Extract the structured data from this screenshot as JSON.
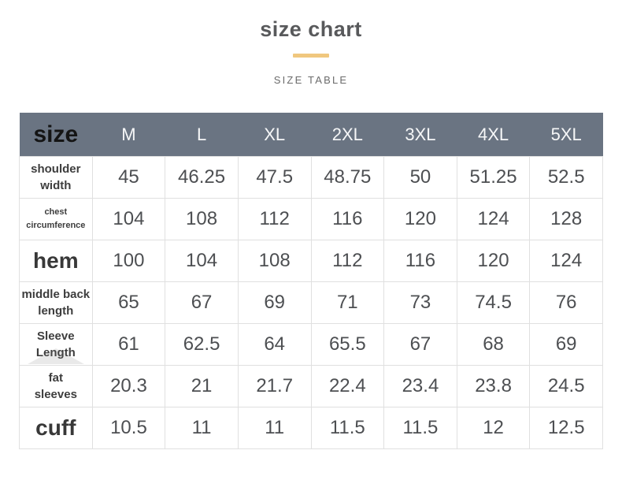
{
  "page": {
    "title": "size chart",
    "subtitle": "SIZE TABLE",
    "accent_color": "#f0c77e"
  },
  "table": {
    "corner_label": "size",
    "header_bg": "#6a7482",
    "columns": [
      "M",
      "L",
      "XL",
      "2XL",
      "3XL",
      "4XL",
      "5XL"
    ],
    "rows": [
      {
        "label": "shoulder\nwidth",
        "label_size": "sm",
        "values": [
          "45",
          "46.25",
          "47.5",
          "48.75",
          "50",
          "51.25",
          "52.5"
        ]
      },
      {
        "label": "chest\ncircumference",
        "label_size": "xs",
        "values": [
          "104",
          "108",
          "112",
          "116",
          "120",
          "124",
          "128"
        ]
      },
      {
        "label": "hem",
        "label_size": "lg",
        "values": [
          "100",
          "104",
          "108",
          "112",
          "116",
          "120",
          "124"
        ]
      },
      {
        "label": "middle back\nlength",
        "label_size": "sm",
        "values": [
          "65",
          "67",
          "69",
          "71",
          "73",
          "74.5",
          "76"
        ]
      },
      {
        "label": "Sleeve\nLength",
        "label_size": "sm",
        "watermark": true,
        "values": [
          "61",
          "62.5",
          "64",
          "65.5",
          "67",
          "68",
          "69"
        ]
      },
      {
        "label": "fat\nsleeves",
        "label_size": "sm",
        "values": [
          "20.3",
          "21",
          "21.7",
          "22.4",
          "23.4",
          "23.8",
          "24.5"
        ]
      },
      {
        "label": "cuff",
        "label_size": "lg",
        "values": [
          "10.5",
          "11",
          "11",
          "11.5",
          "11.5",
          "12",
          "12.5"
        ]
      }
    ]
  },
  "chart_data": {
    "type": "table",
    "title": "size chart",
    "columns": [
      "size",
      "M",
      "L",
      "XL",
      "2XL",
      "3XL",
      "4XL",
      "5XL"
    ],
    "rows": [
      [
        "shoulder width",
        45,
        46.25,
        47.5,
        48.75,
        50,
        51.25,
        52.5
      ],
      [
        "chest circumference",
        104,
        108,
        112,
        116,
        120,
        124,
        128
      ],
      [
        "hem",
        100,
        104,
        108,
        112,
        116,
        120,
        124
      ],
      [
        "middle back length",
        65,
        67,
        69,
        71,
        73,
        74.5,
        76
      ],
      [
        "Sleeve Length",
        61,
        62.5,
        64,
        65.5,
        67,
        68,
        69
      ],
      [
        "fat sleeves",
        20.3,
        21,
        21.7,
        22.4,
        23.4,
        23.8,
        24.5
      ],
      [
        "cuff",
        10.5,
        11,
        11,
        11.5,
        11.5,
        12,
        12.5
      ]
    ]
  }
}
